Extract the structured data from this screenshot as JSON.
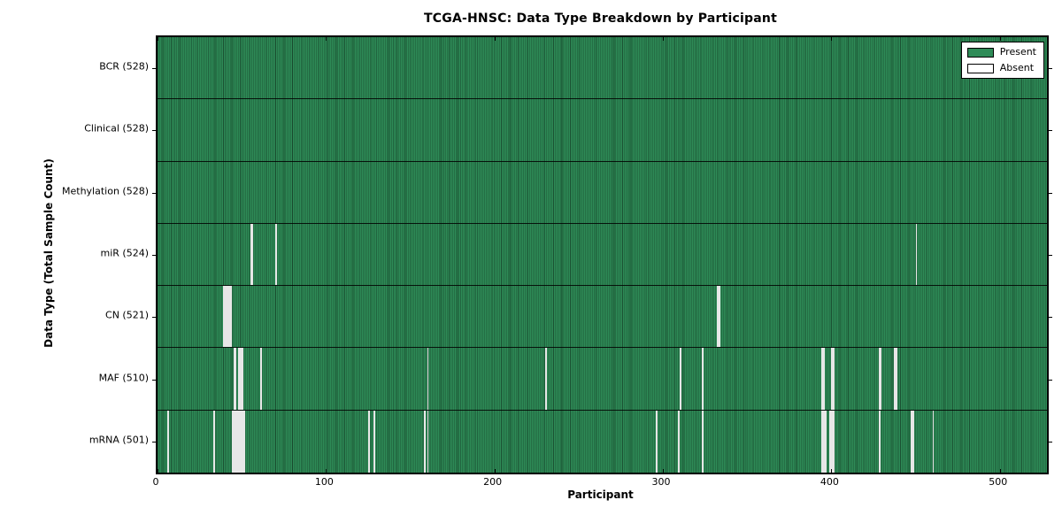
{
  "title": "TCGA-HNSC: Data Type Breakdown by Participant",
  "chart_data": {
    "type": "heatmap",
    "title": "TCGA-HNSC: Data Type Breakdown by Participant",
    "xlabel": "Participant",
    "ylabel": "Data Type (Total Sample Count)",
    "xlim": [
      0,
      528
    ],
    "x_ticks": [
      0,
      100,
      200,
      300,
      400,
      500
    ],
    "n_participants": 528,
    "grid": false,
    "legend_position": "upper right",
    "legend": [
      {
        "label": "Present",
        "color": "#2e8b57"
      },
      {
        "label": "Absent",
        "color": "#ffffff"
      }
    ],
    "colors": {
      "present_fill": "#2e8b57",
      "bar_edge": "#000000",
      "absent_fill": "#e7e7e7",
      "spine": "#000000",
      "background": "#ffffff"
    },
    "rows": [
      {
        "label": "BCR (528)",
        "data_type": "BCR",
        "total_samples": 528,
        "absent_participants": []
      },
      {
        "label": "Clinical (528)",
        "data_type": "Clinical",
        "total_samples": 528,
        "absent_participants": []
      },
      {
        "label": "Methylation (528)",
        "data_type": "Methylation",
        "total_samples": 528,
        "absent_participants": []
      },
      {
        "label": "miR (524)",
        "data_type": "miR",
        "total_samples": 524,
        "absent_participants": [
          55,
          56,
          70,
          450
        ]
      },
      {
        "label": "CN (521)",
        "data_type": "CN",
        "total_samples": 521,
        "absent_participants": [
          39,
          40,
          41,
          42,
          43,
          332,
          333
        ]
      },
      {
        "label": "MAF (510)",
        "data_type": "MAF",
        "total_samples": 510,
        "absent_participants": [
          45,
          46,
          48,
          49,
          50,
          61,
          160,
          230,
          310,
          323,
          394,
          395,
          400,
          401,
          428,
          429,
          437,
          438
        ]
      },
      {
        "label": "mRNA (501)",
        "data_type": "mRNA",
        "total_samples": 501,
        "absent_participants": [
          6,
          33,
          44,
          45,
          46,
          47,
          48,
          49,
          50,
          51,
          125,
          128,
          158,
          160,
          296,
          309,
          323,
          394,
          395,
          396,
          399,
          400,
          401,
          428,
          447,
          448,
          460
        ]
      }
    ]
  }
}
